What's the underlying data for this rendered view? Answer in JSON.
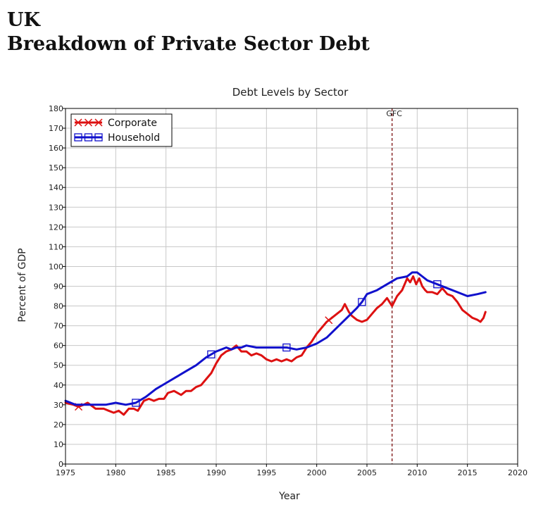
{
  "page": {
    "heading_line1": "UK",
    "heading_line2": "Breakdown of Private Sector Debt"
  },
  "chart_data": {
    "type": "line",
    "title": "Debt Levels by Sector",
    "xlabel": "Year",
    "ylabel": "Percent of GDP",
    "xlim": [
      1975,
      2020
    ],
    "ylim": [
      0,
      180
    ],
    "xticks": [
      1975,
      1980,
      1985,
      1990,
      1995,
      2000,
      2005,
      2010,
      2015,
      2020
    ],
    "yticks": [
      0,
      10,
      20,
      30,
      40,
      50,
      60,
      70,
      80,
      90,
      100,
      110,
      120,
      130,
      140,
      150,
      160,
      170,
      180
    ],
    "grid": true,
    "legend": "top-left",
    "annotations": [
      {
        "label": "GFC",
        "x": 2007.5,
        "style": "dashed-vertical",
        "color": "#8b2c2c"
      }
    ],
    "series": [
      {
        "name": "Corporate",
        "color": "#dd1111",
        "marker": "x",
        "marker_x": [
          1976.3,
          2001.2
        ],
        "x": [
          1975.0,
          1975.8,
          1976.3,
          1976.8,
          1977.2,
          1978.0,
          1978.8,
          1979.3,
          1979.8,
          1980.3,
          1980.8,
          1981.3,
          1981.8,
          1982.2,
          1982.8,
          1983.3,
          1983.8,
          1984.3,
          1984.8,
          1985.2,
          1985.8,
          1986.5,
          1987.0,
          1987.5,
          1988.0,
          1988.5,
          1989.0,
          1989.5,
          1990.0,
          1990.5,
          1991.0,
          1991.5,
          1992.0,
          1992.5,
          1993.0,
          1993.5,
          1994.0,
          1994.5,
          1995.0,
          1995.5,
          1996.0,
          1996.5,
          1997.0,
          1997.5,
          1998.0,
          1998.5,
          1999.0,
          1999.5,
          2000.0,
          2000.5,
          2001.0,
          2001.5,
          2002.0,
          2002.5,
          2002.8,
          2003.2,
          2003.5,
          2004.0,
          2004.5,
          2005.0,
          2005.5,
          2006.0,
          2006.5,
          2007.0,
          2007.5,
          2008.0,
          2008.5,
          2009.0,
          2009.3,
          2009.6,
          2009.9,
          2010.2,
          2010.5,
          2010.8,
          2011.0,
          2011.5,
          2012.0,
          2012.5,
          2013.0,
          2013.5,
          2014.0,
          2014.5,
          2015.0,
          2015.5,
          2016.0,
          2016.3,
          2016.6,
          2016.8
        ],
        "y": [
          31,
          30,
          29,
          30,
          31,
          28,
          28,
          27,
          26,
          27,
          25,
          28,
          28,
          27,
          32,
          33,
          32,
          33,
          33,
          36,
          37,
          35,
          37,
          37,
          39,
          40,
          43,
          46,
          51,
          55,
          57,
          58,
          60,
          57,
          57,
          55,
          56,
          55,
          53,
          52,
          53,
          52,
          53,
          52,
          54,
          55,
          59,
          62,
          66,
          69,
          72,
          74,
          76,
          78,
          81,
          77,
          75,
          73,
          72,
          73,
          76,
          79,
          81,
          84,
          80,
          85,
          88,
          94,
          92,
          95,
          91,
          94,
          90,
          88,
          87,
          87,
          86,
          89,
          86,
          85,
          82,
          78,
          76,
          74,
          73,
          72,
          74,
          77
        ]
      },
      {
        "name": "Household",
        "color": "#1111cc",
        "marker": "square",
        "marker_x": [
          1982.0,
          1989.5,
          1997.0,
          2004.5,
          2012.0
        ],
        "x": [
          1975.0,
          1976.0,
          1977.0,
          1978.0,
          1979.0,
          1980.0,
          1981.0,
          1982.0,
          1983.0,
          1984.0,
          1985.0,
          1986.0,
          1987.0,
          1988.0,
          1989.0,
          1990.0,
          1991.0,
          1991.5,
          1992.0,
          1992.5,
          1993.0,
          1994.0,
          1995.0,
          1996.0,
          1997.0,
          1998.0,
          1999.0,
          2000.0,
          2001.0,
          2002.0,
          2003.0,
          2004.0,
          2004.5,
          2005.0,
          2006.0,
          2007.0,
          2008.0,
          2009.0,
          2009.5,
          2010.0,
          2010.5,
          2011.0,
          2012.0,
          2013.0,
          2014.0,
          2015.0,
          2016.0,
          2016.8
        ],
        "y": [
          32,
          30,
          30,
          30,
          30,
          31,
          30,
          31,
          34,
          38,
          41,
          44,
          47,
          50,
          54,
          57,
          59,
          58,
          59,
          59,
          60,
          59,
          59,
          59,
          59,
          58,
          59,
          61,
          64,
          69,
          74,
          79,
          82,
          86,
          88,
          91,
          94,
          95,
          97,
          97,
          95,
          93,
          91,
          89,
          87,
          85,
          86,
          87
        ]
      }
    ]
  }
}
